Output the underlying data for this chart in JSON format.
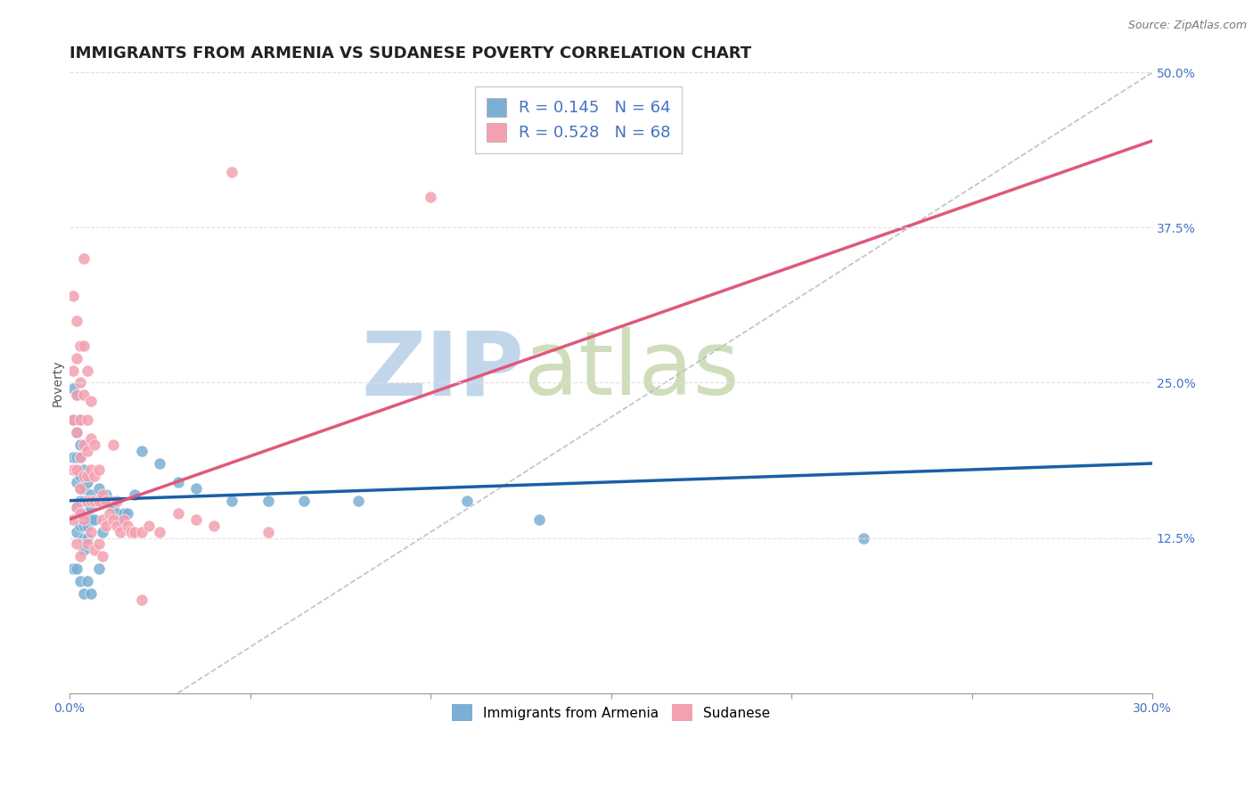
{
  "title": "IMMIGRANTS FROM ARMENIA VS SUDANESE POVERTY CORRELATION CHART",
  "source": "Source: ZipAtlas.com",
  "ylabel": "Poverty",
  "xlim": [
    0.0,
    0.3
  ],
  "ylim": [
    0.0,
    0.5
  ],
  "xticks": [
    0.0,
    0.05,
    0.1,
    0.15,
    0.2,
    0.25,
    0.3
  ],
  "xticklabels": [
    "0.0%",
    "",
    "",
    "",
    "",
    "",
    "30.0%"
  ],
  "yticks_right": [
    0.125,
    0.25,
    0.375,
    0.5
  ],
  "yticklabels_right": [
    "12.5%",
    "25.0%",
    "37.5%",
    "50.0%"
  ],
  "armenia_color": "#7bafd4",
  "sudanese_color": "#f4a0b0",
  "armenia_line_color": "#1a5fa8",
  "sudanese_line_color": "#e0587a",
  "armenia_R": 0.145,
  "armenia_N": 64,
  "sudanese_R": 0.528,
  "sudanese_N": 68,
  "background_color": "#ffffff",
  "grid_color": "#e0e0e0",
  "watermark_zip": "ZIP",
  "watermark_atlas": "atlas",
  "watermark_color_zip": "#b8cfe8",
  "watermark_color_atlas": "#c8d8b0",
  "title_fontsize": 13,
  "axis_label_fontsize": 10,
  "tick_fontsize": 10,
  "legend_fontsize": 13,
  "armenia_scatter_x": [
    0.001,
    0.001,
    0.001,
    0.001,
    0.002,
    0.002,
    0.002,
    0.002,
    0.002,
    0.002,
    0.002,
    0.003,
    0.003,
    0.003,
    0.003,
    0.003,
    0.003,
    0.003,
    0.003,
    0.003,
    0.004,
    0.004,
    0.004,
    0.004,
    0.004,
    0.004,
    0.004,
    0.004,
    0.005,
    0.005,
    0.005,
    0.005,
    0.005,
    0.005,
    0.006,
    0.006,
    0.006,
    0.006,
    0.007,
    0.007,
    0.008,
    0.008,
    0.008,
    0.009,
    0.009,
    0.01,
    0.011,
    0.012,
    0.013,
    0.014,
    0.015,
    0.016,
    0.018,
    0.02,
    0.025,
    0.03,
    0.035,
    0.045,
    0.055,
    0.065,
    0.08,
    0.11,
    0.13,
    0.22
  ],
  "armenia_scatter_y": [
    0.245,
    0.22,
    0.19,
    0.1,
    0.24,
    0.21,
    0.19,
    0.17,
    0.15,
    0.13,
    0.1,
    0.22,
    0.2,
    0.19,
    0.175,
    0.165,
    0.155,
    0.145,
    0.135,
    0.09,
    0.18,
    0.165,
    0.155,
    0.145,
    0.135,
    0.125,
    0.115,
    0.08,
    0.17,
    0.155,
    0.145,
    0.135,
    0.125,
    0.09,
    0.16,
    0.15,
    0.14,
    0.08,
    0.155,
    0.14,
    0.165,
    0.155,
    0.1,
    0.155,
    0.13,
    0.16,
    0.155,
    0.15,
    0.145,
    0.14,
    0.145,
    0.145,
    0.16,
    0.195,
    0.185,
    0.17,
    0.165,
    0.155,
    0.155,
    0.155,
    0.155,
    0.155,
    0.14,
    0.125
  ],
  "sudanese_scatter_x": [
    0.001,
    0.001,
    0.001,
    0.001,
    0.001,
    0.002,
    0.002,
    0.002,
    0.002,
    0.002,
    0.002,
    0.002,
    0.003,
    0.003,
    0.003,
    0.003,
    0.003,
    0.003,
    0.003,
    0.004,
    0.004,
    0.004,
    0.004,
    0.004,
    0.004,
    0.005,
    0.005,
    0.005,
    0.005,
    0.005,
    0.005,
    0.006,
    0.006,
    0.006,
    0.006,
    0.006,
    0.007,
    0.007,
    0.007,
    0.007,
    0.008,
    0.008,
    0.008,
    0.009,
    0.009,
    0.009,
    0.01,
    0.01,
    0.011,
    0.012,
    0.012,
    0.013,
    0.013,
    0.014,
    0.015,
    0.016,
    0.017,
    0.018,
    0.02,
    0.02,
    0.022,
    0.025,
    0.03,
    0.035,
    0.04,
    0.045,
    0.055,
    0.1
  ],
  "sudanese_scatter_y": [
    0.32,
    0.26,
    0.22,
    0.18,
    0.14,
    0.3,
    0.27,
    0.24,
    0.21,
    0.18,
    0.15,
    0.12,
    0.28,
    0.25,
    0.22,
    0.19,
    0.165,
    0.145,
    0.11,
    0.35,
    0.28,
    0.24,
    0.2,
    0.175,
    0.14,
    0.26,
    0.22,
    0.195,
    0.175,
    0.155,
    0.12,
    0.235,
    0.205,
    0.18,
    0.155,
    0.13,
    0.2,
    0.175,
    0.155,
    0.115,
    0.18,
    0.155,
    0.12,
    0.16,
    0.14,
    0.11,
    0.155,
    0.135,
    0.145,
    0.2,
    0.14,
    0.155,
    0.135,
    0.13,
    0.14,
    0.135,
    0.13,
    0.13,
    0.13,
    0.075,
    0.135,
    0.13,
    0.145,
    0.14,
    0.135,
    0.42,
    0.13,
    0.4
  ]
}
